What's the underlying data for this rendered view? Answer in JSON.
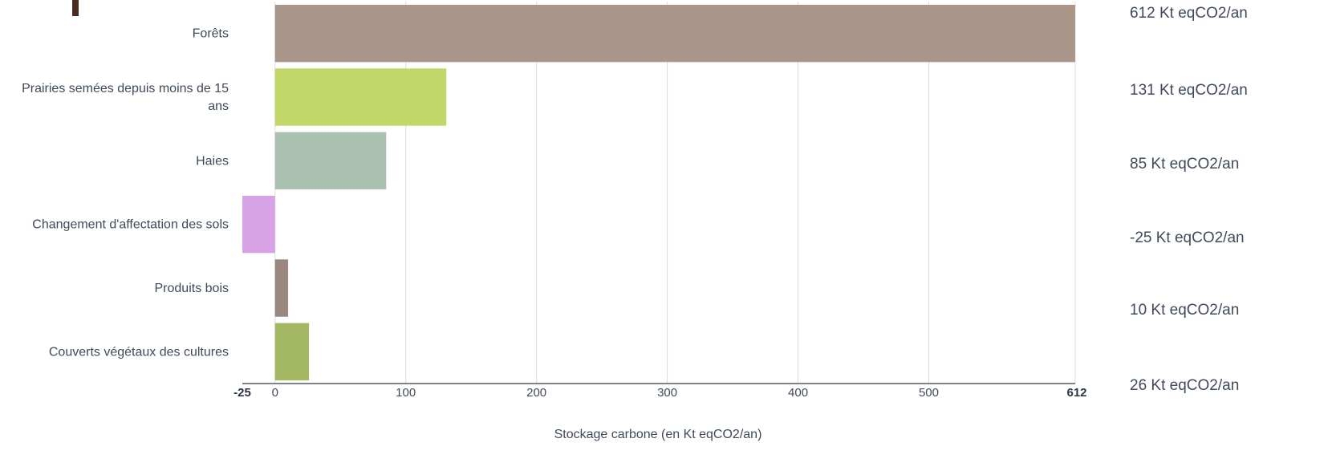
{
  "chart_data": {
    "type": "bar",
    "orientation": "horizontal",
    "title": "",
    "xlabel": "Stockage carbone (en Kt eqCO2/an)",
    "ylabel": "",
    "xlim": [
      -25,
      612
    ],
    "grid": true,
    "categories": [
      "Forêts",
      "Prairies semées depuis moins de 15 ans",
      "Haies",
      "Changement d'affectation des sols",
      "Produits bois",
      "Couverts végétaux des cultures"
    ],
    "values": [
      612,
      131,
      85,
      -25,
      10,
      26
    ],
    "colors": [
      "#ab978a",
      "#c2d76a",
      "#aac0b0",
      "#d8a3e6",
      "#9a8780",
      "#a4b864"
    ],
    "ticks": [
      {
        "value": -25,
        "label": "-25",
        "bold": true
      },
      {
        "value": 0,
        "label": "0",
        "bold": false
      },
      {
        "value": 100,
        "label": "100",
        "bold": false
      },
      {
        "value": 200,
        "label": "200",
        "bold": false
      },
      {
        "value": 300,
        "label": "300",
        "bold": false
      },
      {
        "value": 400,
        "label": "400",
        "bold": false
      },
      {
        "value": 500,
        "label": "500",
        "bold": false
      },
      {
        "value": 612,
        "label": "612",
        "bold": true
      }
    ],
    "side_labels": [
      "612 Kt eqCO2/an",
      "131 Kt eqCO2/an",
      "85 Kt eqCO2/an",
      "-25 Kt eqCO2/an",
      "10 Kt eqCO2/an",
      "26 Kt eqCO2/an"
    ]
  }
}
